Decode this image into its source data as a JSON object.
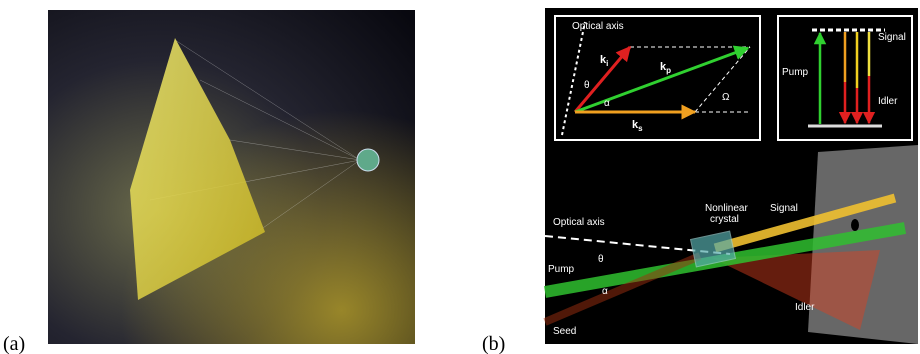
{
  "panel_a": {
    "label": "(a)"
  },
  "panel_b": {
    "label": "(b)",
    "inset_vectors": {
      "axis": "Optical axis",
      "k_i": {
        "main": "k",
        "sub": "i"
      },
      "k_p": {
        "main": "k",
        "sub": "p"
      },
      "k_s": {
        "main": "k",
        "sub": "s"
      },
      "theta": "θ",
      "alpha": "α",
      "omega": "Ω"
    },
    "inset_levels": {
      "pump": "Pump",
      "signal": "Signal",
      "idler": "Idler"
    },
    "scene": {
      "axis": "Optical axis",
      "crystal": [
        "Nonlinear",
        "crystal"
      ],
      "signal": "Signal",
      "pump": "Pump",
      "theta": "θ",
      "alpha": "α",
      "idler": "Idler",
      "seed": "Seed"
    }
  }
}
